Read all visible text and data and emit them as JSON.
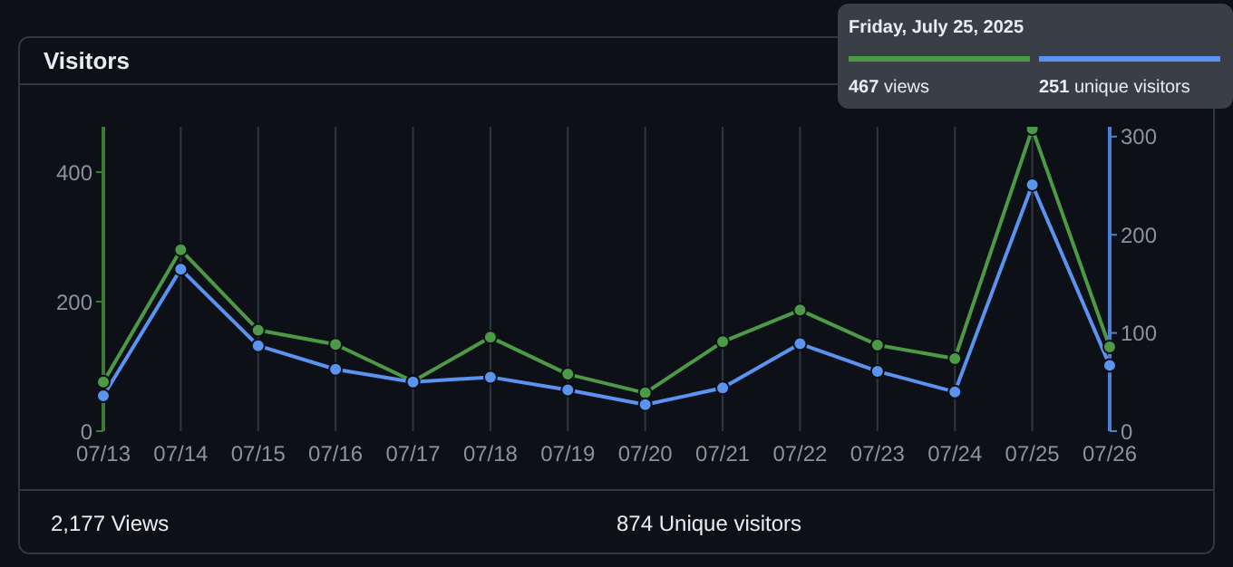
{
  "chart_data": {
    "type": "line",
    "title": "Visitors",
    "categories": [
      "07/13",
      "07/14",
      "07/15",
      "07/16",
      "07/17",
      "07/18",
      "07/19",
      "07/20",
      "07/21",
      "07/22",
      "07/23",
      "07/24",
      "07/25",
      "07/26"
    ],
    "series": [
      {
        "color": "#4c9a45",
        "values": [
          76,
          280,
          156,
          134,
          77,
          145,
          88,
          59,
          138,
          187,
          133,
          112,
          467,
          130
        ]
      },
      {
        "color": "#5a93f0",
        "axis": "y2",
        "values": [
          36,
          165,
          87,
          63,
          50,
          55,
          42,
          27,
          44,
          89,
          61,
          40,
          251,
          67
        ]
      }
    ],
    "ylim": [
      0,
      470
    ],
    "yticks": [
      0,
      200,
      400
    ],
    "y2lim": [
      0,
      310
    ],
    "y2ticks": [
      0,
      100,
      200,
      300
    ],
    "grid": "x",
    "marker": "circle",
    "line_style": "solid",
    "annotations": [
      "Friday, July 25, 2025",
      "467 views",
      "251 unique visitors",
      "2,177 Views",
      "874 Unique visitors"
    ]
  }
}
